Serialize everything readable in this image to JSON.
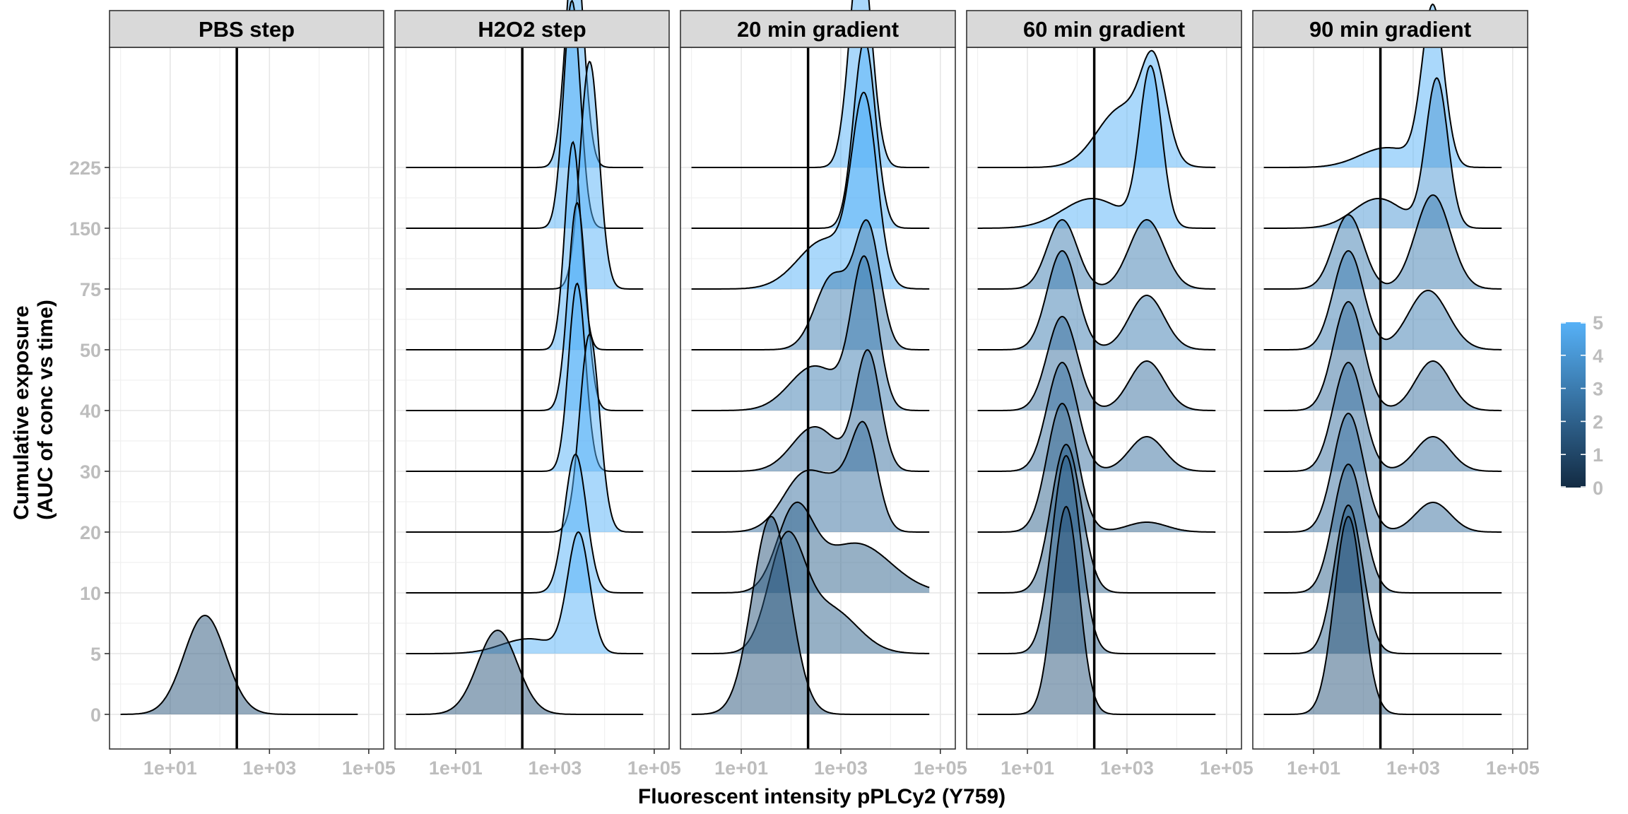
{
  "chart_data": {
    "type": "ridgeline",
    "xlabel": "Fluorescent intensity pPLCy2 (Y759)",
    "ylabel_lines": [
      "Cumulative exposure",
      "(AUC of conc vs time)"
    ],
    "x_scale": "log10",
    "x_ticks": [
      {
        "value": 10,
        "label": "1e+01"
      },
      {
        "value": 1000,
        "label": "1e+03"
      },
      {
        "value": 100000,
        "label": "1e+05"
      }
    ],
    "x_range": [
      0.6,
      200000
    ],
    "y_levels": [
      "0",
      "5",
      "10",
      "20",
      "30",
      "40",
      "50",
      "75",
      "150",
      "225"
    ],
    "threshold_x": 220,
    "grid": true,
    "legend": {
      "position": "right",
      "ticks": [
        "0",
        "1",
        "2",
        "3",
        "4",
        "5"
      ],
      "color_low": "#132b43",
      "color_high": "#56b1f7",
      "min": 0,
      "max": 5
    },
    "fill_alpha": 0.5,
    "panels": [
      {
        "title": "PBS step",
        "ridges": [
          {
            "y": "0",
            "fill": 1.5,
            "curve": {
              "x_range": [
                1,
                60000
              ],
              "peaks": [
                [
                  50,
                  0.42,
                  1.0
                ]
              ]
            }
          }
        ]
      },
      {
        "title": "H2O2 step",
        "ridges": [
          {
            "y": "0",
            "fill": 1.5,
            "curve": {
              "x_range": [
                1,
                60000
              ],
              "peaks": [
                [
                  70,
                  0.4,
                  0.85
                ]
              ]
            }
          },
          {
            "y": "5",
            "fill": 5,
            "curve": {
              "x_range": [
                1,
                60000
              ],
              "peaks": [
                [
                  3000,
                  0.22,
                  1.2
                ],
                [
                  300,
                  0.55,
                  0.15
                ]
              ]
            }
          },
          {
            "y": "10",
            "fill": 5,
            "curve": {
              "x_range": [
                1,
                60000
              ],
              "peaks": [
                [
                  2600,
                  0.22,
                  1.4
                ]
              ]
            }
          },
          {
            "y": "20",
            "fill": 5,
            "curve": {
              "x_range": [
                1,
                60000
              ],
              "peaks": [
                [
                  5000,
                  0.2,
                  2.0
                ]
              ]
            }
          },
          {
            "y": "30",
            "fill": 5,
            "curve": {
              "x_range": [
                1,
                60000
              ],
              "peaks": [
                [
                  2800,
                  0.17,
                  1.9
                ]
              ]
            }
          },
          {
            "y": "40",
            "fill": 5,
            "curve": {
              "x_range": [
                1,
                60000
              ],
              "peaks": [
                [
                  2800,
                  0.18,
                  2.1
                ]
              ]
            }
          },
          {
            "y": "50",
            "fill": 5,
            "curve": {
              "x_range": [
                1,
                60000
              ],
              "peaks": [
                [
                  2300,
                  0.16,
                  2.1
                ]
              ]
            }
          },
          {
            "y": "75",
            "fill": 5,
            "curve": {
              "x_range": [
                1,
                60000
              ],
              "peaks": [
                [
                  5000,
                  0.19,
                  2.3
                ]
              ]
            }
          },
          {
            "y": "150",
            "fill": 5,
            "curve": {
              "x_range": [
                1,
                60000
              ],
              "peaks": [
                [
                  2200,
                  0.17,
                  2.3
                ]
              ]
            }
          },
          {
            "y": "225",
            "fill": 5,
            "curve": {
              "x_range": [
                1,
                60000
              ],
              "peaks": [
                [
                  2500,
                  0.18,
                  2.3
                ]
              ]
            }
          }
        ]
      },
      {
        "title": "20 min gradient",
        "ridges": [
          {
            "y": "0",
            "fill": 1.5,
            "curve": {
              "x_range": [
                1,
                60000
              ],
              "peaks": [
                [
                  40,
                  0.38,
                  2.0
                ]
              ]
            }
          },
          {
            "y": "5",
            "fill": 2,
            "curve": {
              "x_range": [
                1,
                60000
              ],
              "peaks": [
                [
                  80,
                  0.36,
                  1.1
                ],
                [
                  600,
                  0.55,
                  0.45
                ]
              ]
            }
          },
          {
            "y": "10",
            "fill": 2,
            "curve": {
              "x_range": [
                1,
                60000
              ],
              "peaks": [
                [
                  120,
                  0.36,
                  0.8
                ],
                [
                  2000,
                  0.7,
                  0.5
                ]
              ]
            }
          },
          {
            "y": "20",
            "fill": 2.5,
            "curve": {
              "x_range": [
                1,
                60000
              ],
              "peaks": [
                [
                  3000,
                  0.26,
                  1.0
                ],
                [
                  200,
                  0.45,
                  0.6
                ],
                [
                  1000,
                  0.3,
                  0.3
                ]
              ]
            }
          },
          {
            "y": "30",
            "fill": 2.5,
            "curve": {
              "x_range": [
                1,
                60000
              ],
              "peaks": [
                [
                  3500,
                  0.25,
                  1.2
                ],
                [
                  300,
                  0.45,
                  0.45
                ]
              ]
            }
          },
          {
            "y": "40",
            "fill": 3,
            "curve": {
              "x_range": [
                1,
                60000
              ],
              "peaks": [
                [
                  3000,
                  0.26,
                  1.5
                ],
                [
                  300,
                  0.5,
                  0.45
                ]
              ]
            }
          },
          {
            "y": "50",
            "fill": 3,
            "curve": {
              "x_range": [
                1,
                60000
              ],
              "peaks": [
                [
                  3500,
                  0.25,
                  1.2
                ],
                [
                  700,
                  0.35,
                  0.75
                ]
              ]
            }
          },
          {
            "y": "75",
            "fill": 5,
            "curve": {
              "x_range": [
                1,
                60000
              ],
              "peaks": [
                [
                  3000,
                  0.25,
                  1.8
                ],
                [
                  500,
                  0.55,
                  0.5
                ]
              ]
            }
          },
          {
            "y": "150",
            "fill": 5,
            "curve": {
              "x_range": [
                1,
                60000
              ],
              "peaks": [
                [
                  3000,
                  0.22,
                  1.9
                ]
              ]
            }
          },
          {
            "y": "225",
            "fill": 5,
            "curve": {
              "x_range": [
                1,
                60000
              ],
              "peaks": [
                [
                  2500,
                  0.22,
                  2.25
                ]
              ]
            }
          }
        ]
      },
      {
        "title": "60 min gradient",
        "ridges": [
          {
            "y": "0",
            "fill": 1.5,
            "curve": {
              "x_range": [
                1,
                60000
              ],
              "peaks": [
                [
                  60,
                  0.26,
                  2.1
                ]
              ]
            }
          },
          {
            "y": "5",
            "fill": 2,
            "curve": {
              "x_range": [
                1,
                60000
              ],
              "peaks": [
                [
                  60,
                  0.28,
                  2.0
                ]
              ]
            }
          },
          {
            "y": "10",
            "fill": 2,
            "curve": {
              "x_range": [
                1,
                60000
              ],
              "peaks": [
                [
                  60,
                  0.3,
                  1.5
                ]
              ]
            }
          },
          {
            "y": "20",
            "fill": 2,
            "curve": {
              "x_range": [
                1,
                60000
              ],
              "peaks": [
                [
                  50,
                  0.3,
                  1.3
                ],
                [
                  2500,
                  0.4,
                  0.1
                ]
              ]
            }
          },
          {
            "y": "30",
            "fill": 2.5,
            "curve": {
              "x_range": [
                1,
                60000
              ],
              "peaks": [
                [
                  50,
                  0.3,
                  1.1
                ],
                [
                  2500,
                  0.35,
                  0.35
                ]
              ]
            }
          },
          {
            "y": "40",
            "fill": 2.5,
            "curve": {
              "x_range": [
                1,
                60000
              ],
              "peaks": [
                [
                  50,
                  0.3,
                  0.95
                ],
                [
                  2500,
                  0.35,
                  0.5
                ]
              ]
            }
          },
          {
            "y": "50",
            "fill": 3,
            "curve": {
              "x_range": [
                1,
                60000
              ],
              "peaks": [
                [
                  50,
                  0.3,
                  1.0
                ],
                [
                  2500,
                  0.35,
                  0.55
                ]
              ]
            }
          },
          {
            "y": "75",
            "fill": 3,
            "curve": {
              "x_range": [
                1,
                60000
              ],
              "peaks": [
                [
                  50,
                  0.3,
                  0.7
                ],
                [
                  2500,
                  0.35,
                  0.7
                ]
              ]
            }
          },
          {
            "y": "150",
            "fill": 5,
            "curve": {
              "x_range": [
                1,
                60000
              ],
              "peaks": [
                [
                  3000,
                  0.22,
                  1.6
                ],
                [
                  200,
                  0.6,
                  0.3
                ]
              ]
            }
          },
          {
            "y": "225",
            "fill": 5,
            "curve": {
              "x_range": [
                1,
                60000
              ],
              "peaks": [
                [
                  3500,
                  0.25,
                  0.9
                ],
                [
                  800,
                  0.5,
                  0.6
                ]
              ]
            }
          }
        ]
      },
      {
        "title": "90 min gradient",
        "ridges": [
          {
            "y": "0",
            "fill": 1.5,
            "curve": {
              "x_range": [
                1,
                60000
              ],
              "peaks": [
                [
                  50,
                  0.28,
                  2.0
                ]
              ]
            }
          },
          {
            "y": "5",
            "fill": 2,
            "curve": {
              "x_range": [
                1,
                60000
              ],
              "peaks": [
                [
                  50,
                  0.28,
                  1.5
                ]
              ]
            }
          },
          {
            "y": "10",
            "fill": 2,
            "curve": {
              "x_range": [
                1,
                60000
              ],
              "peaks": [
                [
                  50,
                  0.3,
                  1.3
                ]
              ]
            }
          },
          {
            "y": "20",
            "fill": 2.5,
            "curve": {
              "x_range": [
                1,
                60000
              ],
              "peaks": [
                [
                  50,
                  0.3,
                  1.2
                ],
                [
                  2500,
                  0.35,
                  0.3
                ]
              ]
            }
          },
          {
            "y": "30",
            "fill": 2.5,
            "curve": {
              "x_range": [
                1,
                60000
              ],
              "peaks": [
                [
                  50,
                  0.3,
                  1.1
                ],
                [
                  2500,
                  0.35,
                  0.35
                ]
              ]
            }
          },
          {
            "y": "40",
            "fill": 2.5,
            "curve": {
              "x_range": [
                1,
                60000
              ],
              "peaks": [
                [
                  50,
                  0.3,
                  1.1
                ],
                [
                  2500,
                  0.35,
                  0.5
                ]
              ]
            }
          },
          {
            "y": "50",
            "fill": 3,
            "curve": {
              "x_range": [
                1,
                60000
              ],
              "peaks": [
                [
                  50,
                  0.3,
                  1.0
                ],
                [
                  2000,
                  0.4,
                  0.6
                ]
              ]
            }
          },
          {
            "y": "75",
            "fill": 3,
            "curve": {
              "x_range": [
                1,
                60000
              ],
              "peaks": [
                [
                  50,
                  0.3,
                  0.75
                ],
                [
                  2500,
                  0.35,
                  0.95
                ]
              ]
            }
          },
          {
            "y": "150",
            "fill": 4,
            "curve": {
              "x_range": [
                1,
                60000
              ],
              "peaks": [
                [
                  3000,
                  0.22,
                  1.5
                ],
                [
                  200,
                  0.5,
                  0.3
                ]
              ]
            }
          },
          {
            "y": "225",
            "fill": 5,
            "curve": {
              "x_range": [
                1,
                60000
              ],
              "peaks": [
                [
                  2500,
                  0.22,
                  1.6
                ],
                [
                  300,
                  0.55,
                  0.2
                ]
              ]
            }
          }
        ]
      }
    ]
  }
}
